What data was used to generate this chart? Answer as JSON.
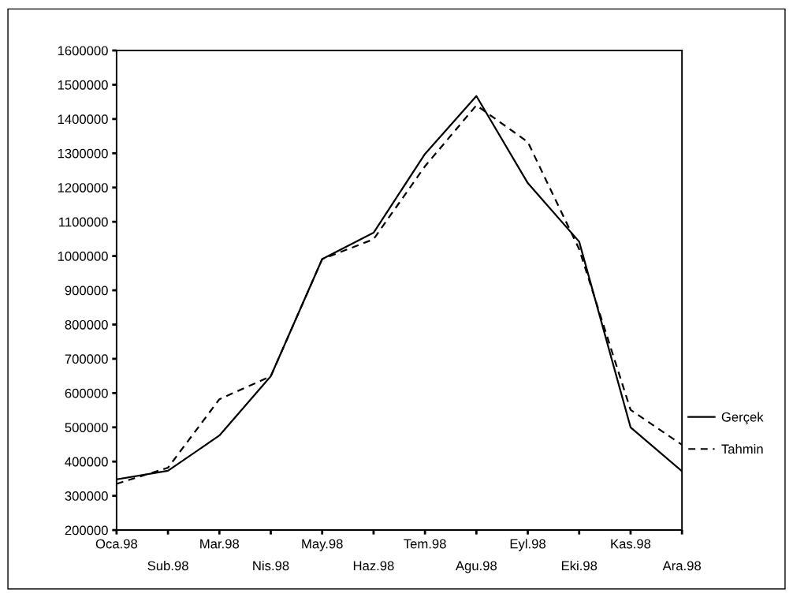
{
  "chart_data": {
    "type": "line",
    "categories": [
      "Oca.98",
      "Sub.98",
      "Mar.98",
      "Nis.98",
      "May.98",
      "Haz.98",
      "Tem.98",
      "Agu.98",
      "Eyl.98",
      "Eki.98",
      "Kas.98",
      "Ara.98"
    ],
    "series": [
      {
        "name": "Gerçek",
        "color": "#000000",
        "line_style": "solid",
        "values": [
          348000,
          373000,
          476000,
          649000,
          991000,
          1068000,
          1298000,
          1467000,
          1213000,
          1042000,
          500000,
          372000
        ]
      },
      {
        "name": "Tahmin",
        "color": "#000000",
        "line_style": "dashed",
        "values": [
          335000,
          382000,
          582000,
          649000,
          991000,
          1049000,
          1262000,
          1440000,
          1333000,
          1020000,
          551000,
          449000
        ]
      }
    ],
    "ylim": [
      200000,
      1600000
    ],
    "yticks": [
      200000,
      300000,
      400000,
      500000,
      600000,
      700000,
      800000,
      900000,
      1000000,
      1100000,
      1200000,
      1300000,
      1400000,
      1500000,
      1600000
    ],
    "grid": false,
    "legend": "right"
  }
}
